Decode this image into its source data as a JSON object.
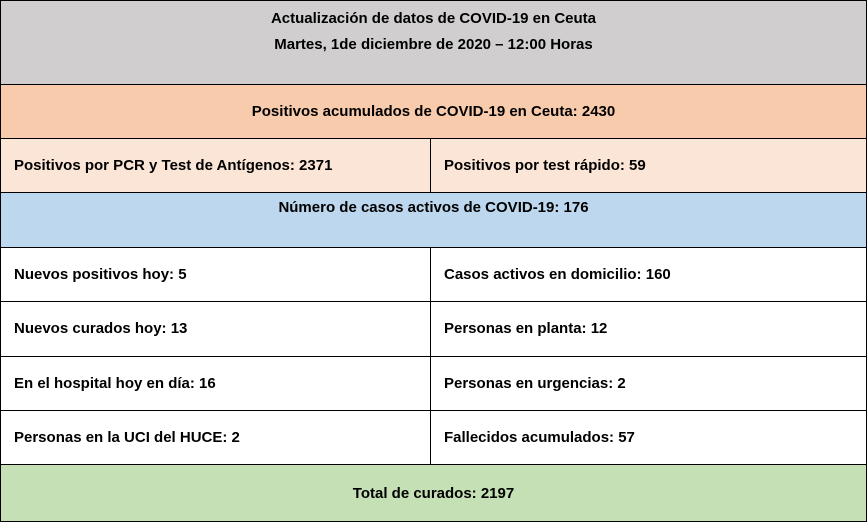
{
  "header": {
    "title": "Actualización de datos de COVID-19 en Ceuta",
    "date": "Martes, 1de diciembre de 2020 – 12:00 Horas"
  },
  "table": {
    "positivos_acumulados": "Positivos acumulados de COVID-19 en Ceuta:  2430",
    "positivos_split": [
      "Positivos por PCR y Test de Antígenos:  2371",
      "Positivos por test rápido:  59"
    ],
    "casos_activos": "Número de casos activos de COVID-19:   176",
    "rows": [
      [
        "Nuevos positivos hoy: 5",
        "Casos activos en domicilio: 160"
      ],
      [
        "Nuevos curados hoy: 13",
        "Personas en planta: 12"
      ],
      [
        "En el hospital hoy en día: 16",
        "Personas en urgencias: 2"
      ],
      [
        "Personas en la UCI del HUCE: 2",
        "Fallecidos acumulados: 57"
      ]
    ],
    "total_curados": "Total de curados: 2197"
  }
}
